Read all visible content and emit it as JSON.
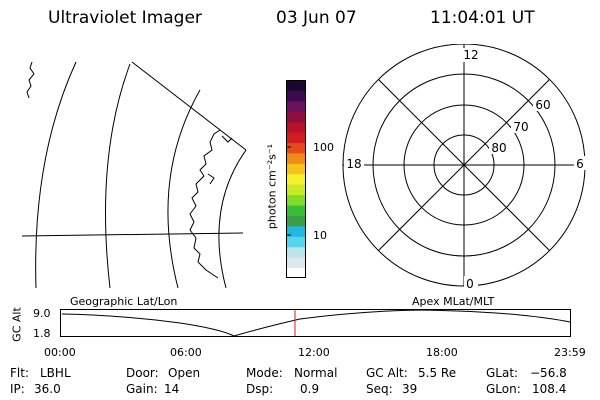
{
  "header": {
    "title": "Ultraviolet Imager",
    "date": "03 Jun 07",
    "time": "11:04:01 UT"
  },
  "colorbar": {
    "unit_label": "photon cm⁻²s⁻¹",
    "ticks": [
      {
        "label": "100"
      },
      {
        "label": "10"
      }
    ],
    "colors": [
      "#ffffff",
      "#dfe8ec",
      "#bde4ea",
      "#55d6e8",
      "#22b7e0",
      "#3e9b47",
      "#37bd36",
      "#7fdc2a",
      "#c7ec26",
      "#f4f12a",
      "#f6c21c",
      "#f08a1a",
      "#e44a1a",
      "#d21d20",
      "#b4112a",
      "#8a1040",
      "#6c1060",
      "#3c0a4e",
      "#1a0830"
    ]
  },
  "polar": {
    "top_label": "12",
    "bottom_label": "0",
    "left_label": "18",
    "right_label": "6",
    "ring_labels": [
      "60",
      "70",
      "80"
    ]
  },
  "timeline": {
    "left_title": "Geographic Lat/Lon",
    "right_title": "Apex  MLat/MLT",
    "y_label": "GC Alt",
    "y_ticks": [
      "9.0",
      "1.8"
    ],
    "x_ticks": [
      "00:00",
      "06:00",
      "12:00",
      "18:00",
      "23:59"
    ],
    "marker_color": "#cc2020"
  },
  "status": {
    "row1": [
      {
        "label": "Flt:",
        "value": "LBHL"
      },
      {
        "label": "Door:",
        "value": "Open"
      },
      {
        "label": "Mode:",
        "value": "Normal"
      },
      {
        "label": "GC Alt:",
        "value": "5.5 Re"
      },
      {
        "label": "GLat:",
        "value": "−56.8"
      }
    ],
    "row2": [
      {
        "label": "IP:",
        "value": "36.0"
      },
      {
        "label": "Gain:",
        "value": "14"
      },
      {
        "label": "Dsp:",
        "value": "0.9"
      },
      {
        "label": "Seq:",
        "value": "39"
      },
      {
        "label": "GLon:",
        "value": "108.4"
      }
    ]
  }
}
